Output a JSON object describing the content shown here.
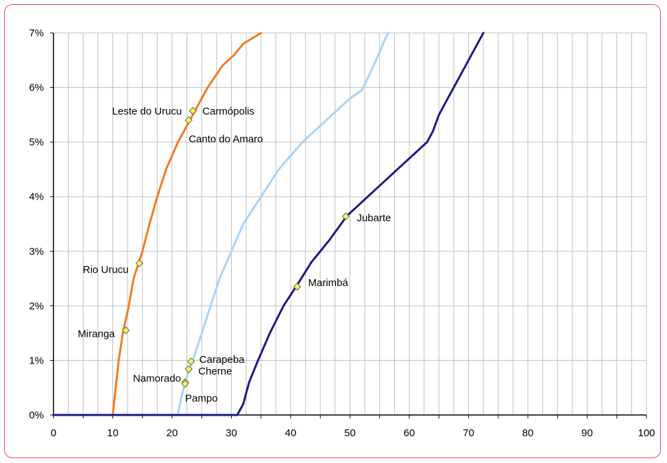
{
  "chart_data": {
    "type": "line",
    "title": "",
    "xlabel": "",
    "ylabel": "",
    "xlim": [
      0,
      100
    ],
    "ylim": [
      0,
      7
    ],
    "x_ticks": [
      "0",
      "10",
      "20",
      "30",
      "40",
      "50",
      "60",
      "70",
      "80",
      "90",
      "100"
    ],
    "y_ticks": [
      "0%",
      "1%",
      "2%",
      "3%",
      "4%",
      "5%",
      "6%",
      "7%"
    ],
    "grid": true,
    "legend": "none",
    "series": [
      {
        "color": "#f07b22",
        "points": [
          [
            0,
            0
          ],
          [
            10,
            0
          ],
          [
            10.5,
            0.5
          ],
          [
            11,
            1.0
          ],
          [
            11.7,
            1.5
          ],
          [
            12.7,
            2.0
          ],
          [
            13.5,
            2.5
          ],
          [
            15,
            3.0
          ],
          [
            16.2,
            3.5
          ],
          [
            17.5,
            4.0
          ],
          [
            19,
            4.5
          ],
          [
            21,
            5.0
          ],
          [
            23,
            5.4
          ],
          [
            24,
            5.6
          ],
          [
            26,
            6.0
          ],
          [
            28.5,
            6.4
          ],
          [
            30.5,
            6.6
          ],
          [
            32,
            6.8
          ],
          [
            33.5,
            6.9
          ],
          [
            35,
            7.0
          ]
        ]
      },
      {
        "color": "#a8d4f8",
        "points": [
          [
            0,
            0
          ],
          [
            21,
            0
          ],
          [
            21.5,
            0.3
          ],
          [
            22.5,
            0.7
          ],
          [
            23.5,
            1.0
          ],
          [
            25,
            1.5
          ],
          [
            26.5,
            2.0
          ],
          [
            28,
            2.5
          ],
          [
            30,
            3.0
          ],
          [
            32,
            3.5
          ],
          [
            35,
            4.0
          ],
          [
            38,
            4.5
          ],
          [
            42,
            5.0
          ],
          [
            46,
            5.4
          ],
          [
            50,
            5.8
          ],
          [
            52,
            5.95
          ],
          [
            54,
            6.4
          ],
          [
            56,
            6.9
          ],
          [
            56.5,
            7.0
          ]
        ]
      },
      {
        "color": "#1a1a86",
        "points": [
          [
            0,
            0
          ],
          [
            31,
            0
          ],
          [
            32,
            0.2
          ],
          [
            33,
            0.6
          ],
          [
            34.5,
            1.0
          ],
          [
            36.5,
            1.5
          ],
          [
            38.8,
            2.0
          ],
          [
            41.2,
            2.4
          ],
          [
            43.5,
            2.8
          ],
          [
            46.5,
            3.2
          ],
          [
            49.5,
            3.65
          ],
          [
            53,
            4.0
          ],
          [
            56,
            4.3
          ],
          [
            59,
            4.6
          ],
          [
            61.5,
            4.85
          ],
          [
            63,
            5.0
          ],
          [
            64,
            5.2
          ],
          [
            65,
            5.5
          ],
          [
            66.5,
            5.8
          ],
          [
            68,
            6.1
          ],
          [
            69.5,
            6.4
          ],
          [
            71,
            6.7
          ],
          [
            72.5,
            7.0
          ]
        ]
      }
    ],
    "points": [
      {
        "label": "Leste do Urucu",
        "x": 23.5,
        "y": 5.57,
        "series": 0
      },
      {
        "label": "Carmópolis",
        "x": 23.5,
        "y": 5.57,
        "series": 0
      },
      {
        "label": "Canto do Amaro",
        "x": 22.8,
        "y": 5.4,
        "series": 0
      },
      {
        "label": "Rio Urucu",
        "x": 14.5,
        "y": 2.78,
        "series": 0
      },
      {
        "label": "Miranga",
        "x": 12.2,
        "y": 1.55,
        "series": 0
      },
      {
        "label": "Carapeba",
        "x": 23.2,
        "y": 0.98,
        "series": 1
      },
      {
        "label": "Cherne",
        "x": 22.8,
        "y": 0.84,
        "series": 1
      },
      {
        "label": "Namorado",
        "x": 22.2,
        "y": 0.6,
        "series": 1
      },
      {
        "label": "Pampo",
        "x": 22.2,
        "y": 0.57,
        "series": 1
      },
      {
        "label": "Jubarte",
        "x": 49.3,
        "y": 3.64,
        "series": 2
      },
      {
        "label": "Marimbá",
        "x": 41.1,
        "y": 2.35,
        "series": 2
      }
    ],
    "marker_color": "#f6f060"
  }
}
